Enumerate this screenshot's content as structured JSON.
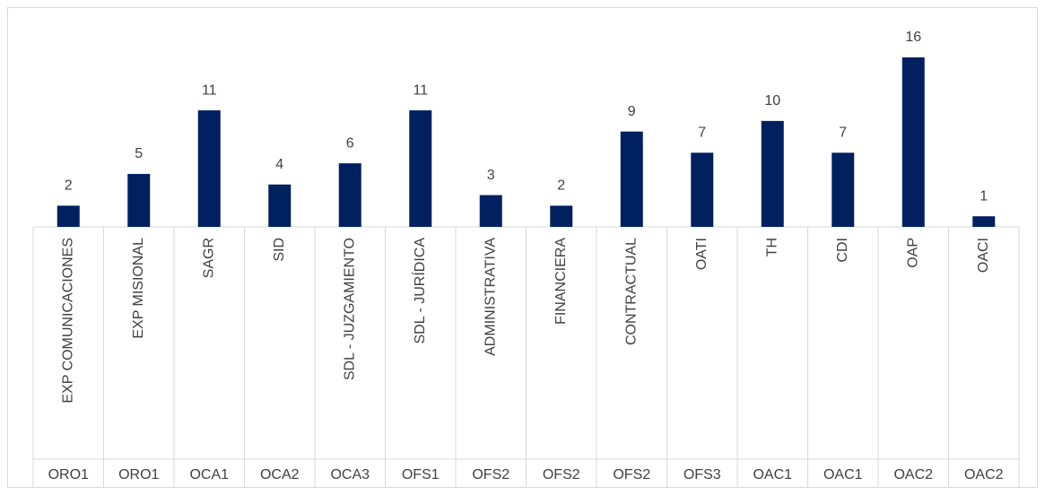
{
  "chart_data": {
    "type": "bar",
    "categories": [
      "EXP COMUNICACIONES",
      "EXP MISIONAL",
      "SAGR",
      "SID",
      "SDL - JUZGAMIENTO",
      "SDL - JURÍDICA",
      "ADMINISTRATIVA",
      "FINANCIERA",
      "CONTRACTUAL",
      "OATI",
      "TH",
      "CDI",
      "OAP",
      "OACI"
    ],
    "groups": [
      "ORO1",
      "ORO1",
      "OCA1",
      "OCA2",
      "OCA3",
      "OFS1",
      "OFS2",
      "OFS2",
      "OFS2",
      "OFS3",
      "OAC1",
      "OAC1",
      "OAC2",
      "OAC2"
    ],
    "values": [
      2,
      5,
      11,
      4,
      6,
      11,
      3,
      2,
      9,
      7,
      10,
      7,
      16,
      1
    ],
    "color": "#002060",
    "ylim": [
      0,
      16
    ]
  }
}
